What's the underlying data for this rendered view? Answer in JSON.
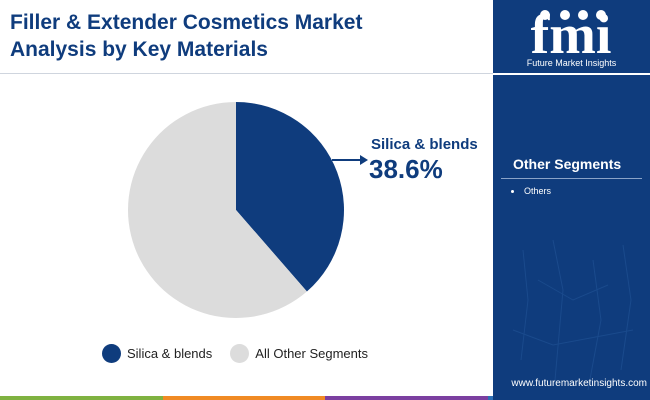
{
  "header": {
    "title_line1": "Filler & Extender Cosmetics Market",
    "title_line2": "Analysis by Key Materials"
  },
  "chart_data": {
    "type": "pie",
    "categories": [
      "Silica & blends",
      "All Other Segments"
    ],
    "values": [
      38.6,
      61.4
    ],
    "colors": [
      "#0f3c7d",
      "#dcdcdc"
    ],
    "callout": {
      "label": "Silica & blends",
      "value": "38.6%"
    },
    "legend": {
      "placement": "bottom",
      "entries": [
        "Silica & blends",
        "All Other Segments"
      ]
    }
  },
  "sidebar": {
    "logo_text": "fmi",
    "logo_subtitle": "Future Market Insights",
    "segments_title": "Other Segments",
    "segments_items": [
      "Others"
    ],
    "website": "www.futuremarketinsights.com",
    "panel_color": "#0f3c7d"
  },
  "bottom_bar_colors": [
    "#7fb241",
    "#f08a24",
    "#7b3fa0",
    "#2e6fb5"
  ]
}
